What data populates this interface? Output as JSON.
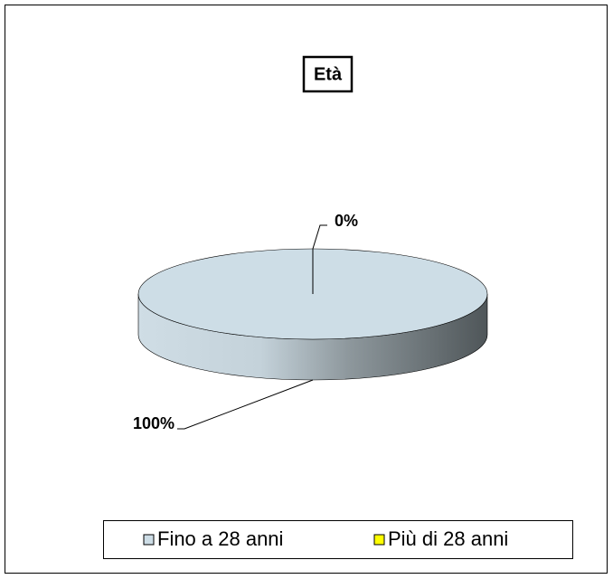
{
  "chart_data": {
    "type": "pie",
    "title": "Età",
    "categories": [
      "Fino a 28 anni",
      "Più di 28 anni"
    ],
    "values": [
      100,
      0
    ],
    "value_labels": [
      "100%",
      "0%"
    ],
    "colors": [
      "#cddde6",
      "#ffff00"
    ],
    "legend": "bottom"
  }
}
